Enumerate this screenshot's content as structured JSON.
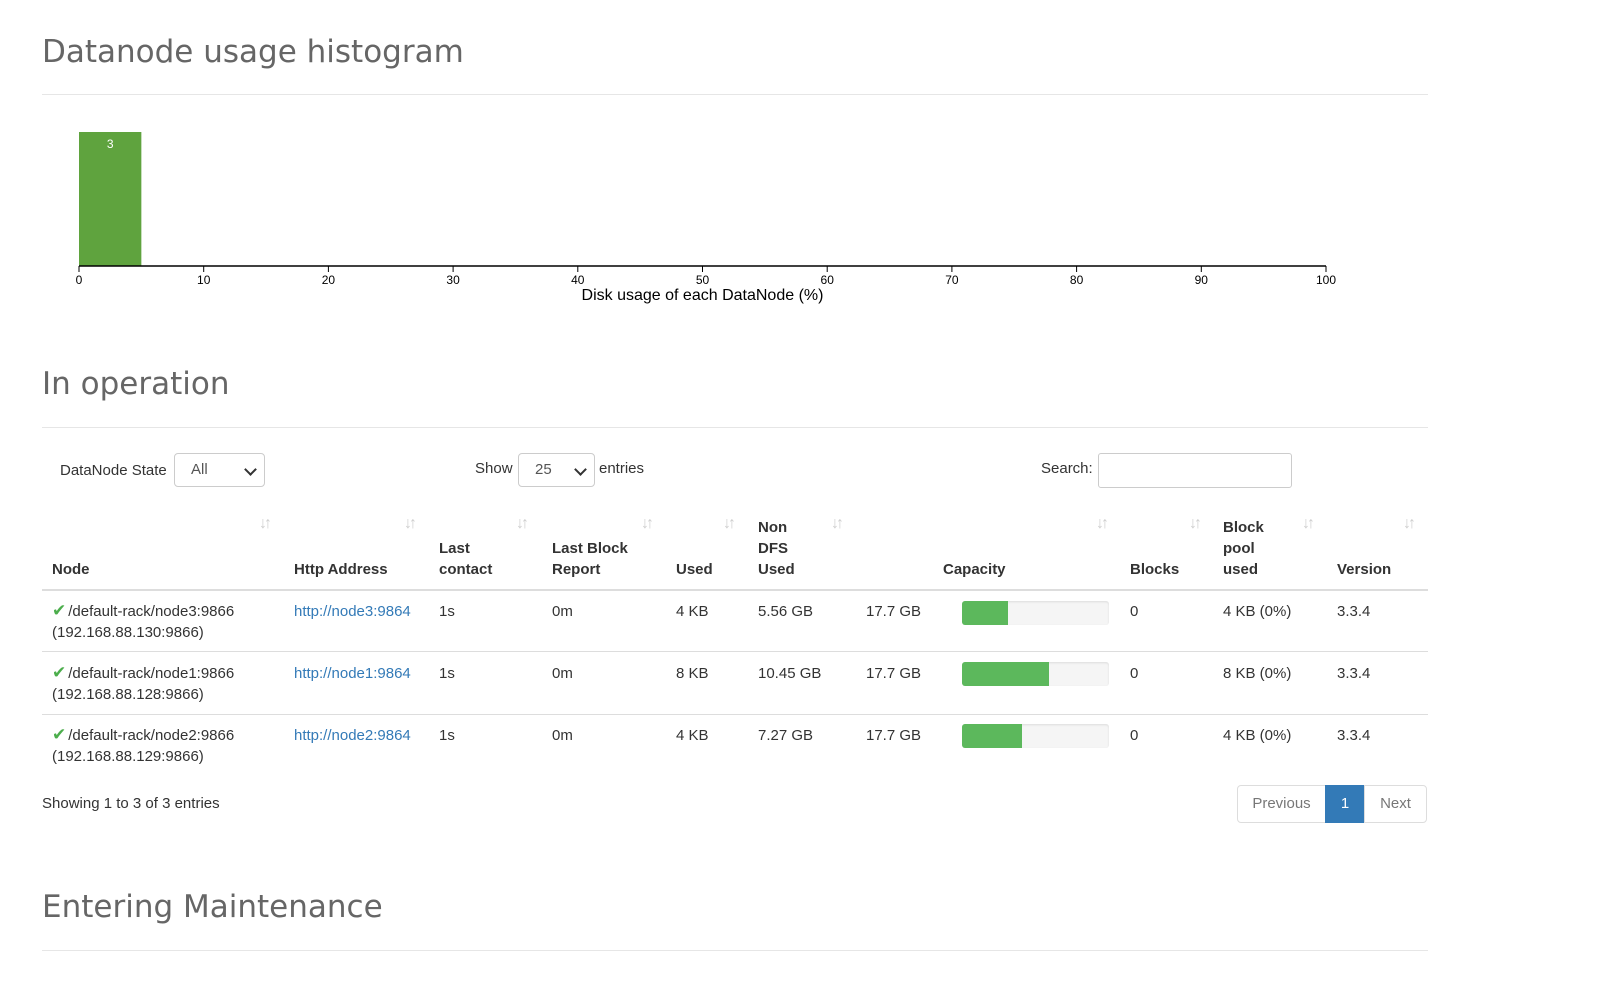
{
  "histogram": {
    "title": "Datanode usage histogram",
    "chart_data": {
      "type": "bar",
      "bins": [
        {
          "from": 0,
          "to": 5,
          "count": 3
        }
      ],
      "xlabel": "Disk usage of each DataNode (%)",
      "xlim": [
        0,
        100
      ],
      "xticks": [
        0,
        10,
        20,
        30,
        40,
        50,
        60,
        70,
        80,
        90,
        100
      ],
      "bar_color": "#5fa33e"
    }
  },
  "in_operation": {
    "title": "In operation",
    "state_filter": {
      "label": "DataNode State",
      "value": "All"
    },
    "length": {
      "show_label": "Show",
      "value": "25",
      "entries_label": "entries"
    },
    "search": {
      "label": "Search:",
      "value": ""
    },
    "columns": [
      {
        "label": "Node"
      },
      {
        "label": "Http Address"
      },
      {
        "label": "Last contact"
      },
      {
        "label": "Last Block Report"
      },
      {
        "label": "Used"
      },
      {
        "label": "Non DFS Used"
      },
      {
        "label": "Capacity"
      },
      {
        "label": "Blocks"
      },
      {
        "label": "Block pool used"
      },
      {
        "label": "Version"
      }
    ],
    "rows": [
      {
        "status_icon": "check-icon",
        "node": "/default-rack/node3:9866",
        "node_ip": "(192.168.88.130:9866)",
        "http": "http://node3:9864",
        "last_contact": "1s",
        "last_block_report": "0m",
        "used": "4 KB",
        "non_dfs_used": "5.56 GB",
        "capacity": "17.7 GB",
        "usage_fraction": 0.31,
        "blocks": "0",
        "block_pool_used": "4 KB (0%)",
        "version": "3.3.4"
      },
      {
        "status_icon": "check-icon",
        "node": "/default-rack/node1:9866",
        "node_ip": "(192.168.88.128:9866)",
        "http": "http://node1:9864",
        "last_contact": "1s",
        "last_block_report": "0m",
        "used": "8 KB",
        "non_dfs_used": "10.45 GB",
        "capacity": "17.7 GB",
        "usage_fraction": 0.59,
        "blocks": "0",
        "block_pool_used": "8 KB (0%)",
        "version": "3.3.4"
      },
      {
        "status_icon": "check-icon",
        "node": "/default-rack/node2:9866",
        "node_ip": "(192.168.88.129:9866)",
        "http": "http://node2:9864",
        "last_contact": "1s",
        "last_block_report": "0m",
        "used": "4 KB",
        "non_dfs_used": "7.27 GB",
        "capacity": "17.7 GB",
        "usage_fraction": 0.41,
        "blocks": "0",
        "block_pool_used": "4 KB (0%)",
        "version": "3.3.4"
      }
    ],
    "info": "Showing 1 to 3 of 3 entries",
    "pagination": {
      "previous": "Previous",
      "current": "1",
      "next": "Next"
    },
    "accent_color": "#337ab7",
    "progress_color": "#5cb85c"
  },
  "entering_maintenance": {
    "title": "Entering Maintenance"
  }
}
